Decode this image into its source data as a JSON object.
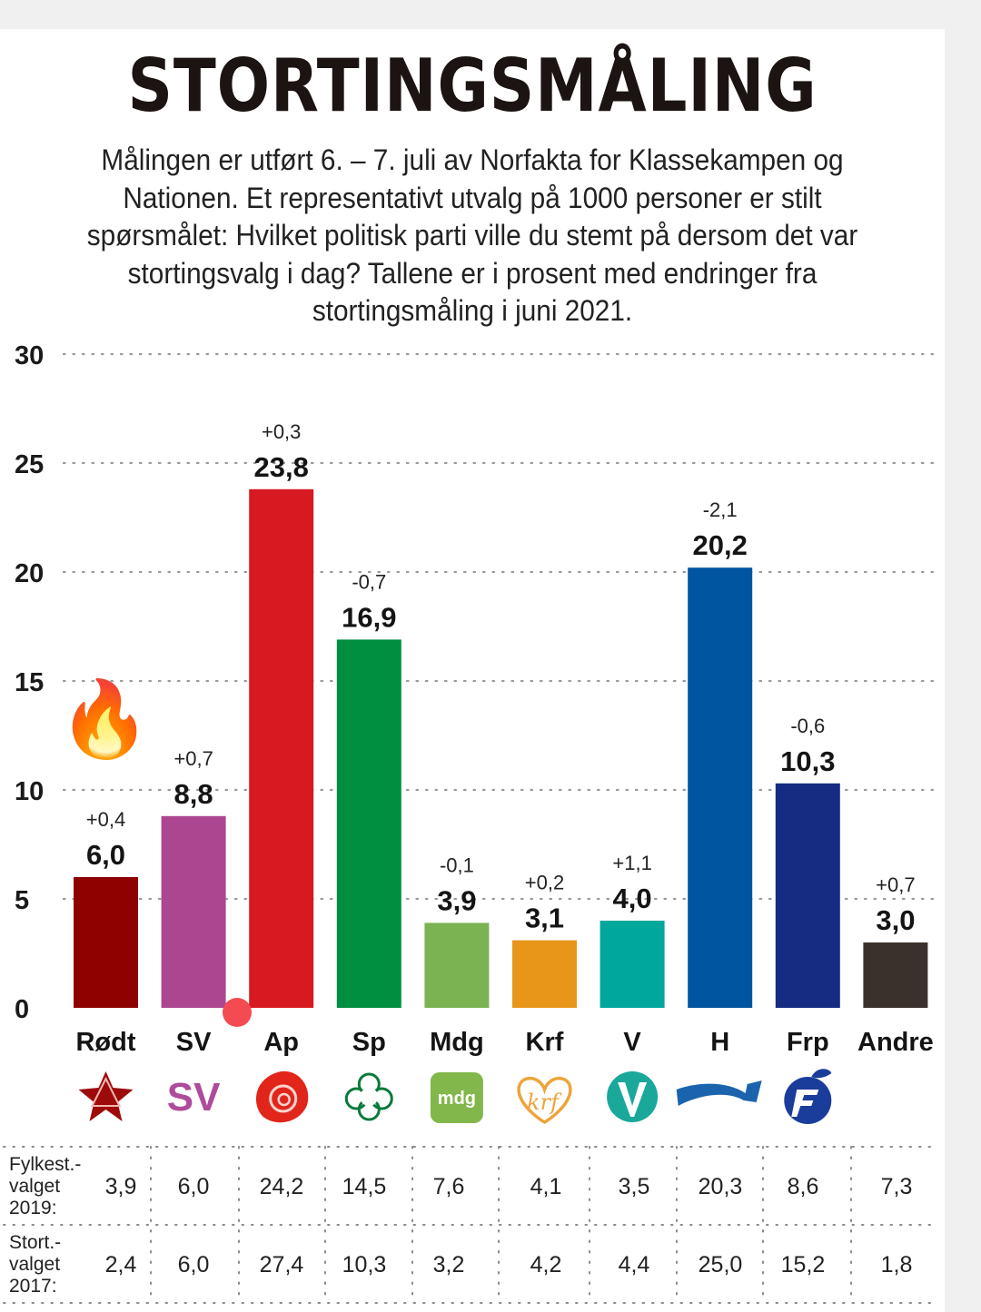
{
  "title": "STORTINGSMÅLING",
  "subtitle": "Målingen er utført 6. – 7. juli av Norfakta for Klassekampen og Nationen. Et representativt utvalg på 1000 personer er stilt spørsmålet: Hvilket politisk parti ville du stemt på dersom det var stortingsvalg i dag? Tallene er i prosent med endringer fra stortingsmåling i juni 2021.",
  "decorations": {
    "flame_emoji": "🔥",
    "flame_icon": "fire-icon",
    "red_dot": "#f44b52"
  },
  "chart_data": {
    "type": "bar",
    "title": "STORTINGSMÅLING",
    "xlabel": "",
    "ylabel": "",
    "ylim": [
      0,
      30
    ],
    "yticks": [
      0,
      5,
      10,
      15,
      20,
      25,
      30
    ],
    "grid": true,
    "categories": [
      "Rødt",
      "SV",
      "Ap",
      "Sp",
      "Mdg",
      "Krf",
      "V",
      "H",
      "Frp",
      "Andre"
    ],
    "values": [
      6.0,
      8.8,
      23.8,
      16.9,
      3.9,
      3.1,
      4.0,
      20.2,
      10.3,
      3.0
    ],
    "value_labels": [
      "6,0",
      "8,8",
      "23,8",
      "16,9",
      "3,9",
      "3,1",
      "4,0",
      "20,2",
      "10,3",
      "3,0"
    ],
    "changes": [
      "+0,4",
      "+0,7",
      "+0,3",
      "-0,7",
      "-0,1",
      "+0,2",
      "+1,1",
      "-2,1",
      "-0,6",
      "+0,7"
    ],
    "colors": [
      "#8f0000",
      "#ad4690",
      "#d71921",
      "#008e41",
      "#7bb352",
      "#e8961a",
      "#00a79b",
      "#0055a0",
      "#152c82",
      "#3b312c"
    ],
    "logos": [
      "rodt-star-icon",
      "sv-logo-icon",
      "ap-rose-icon",
      "sp-clover-icon",
      "mdg-logo-icon",
      "krf-heart-icon",
      "v-logo-icon",
      "h-arrow-icon",
      "frp-apple-icon",
      ""
    ],
    "table": {
      "rows": [
        {
          "label": [
            "Fylkest.-",
            "valget",
            "2019:"
          ],
          "values": [
            "3,9",
            "6,0",
            "24,2",
            "14,5",
            "7,6",
            "4,1",
            "3,5",
            "20,3",
            "8,6",
            "7,3"
          ]
        },
        {
          "label": [
            "Stort.-",
            "valget",
            "2017:"
          ],
          "values": [
            "2,4",
            "6,0",
            "27,4",
            "10,3",
            "3,2",
            "4,2",
            "4,4",
            "25,0",
            "15,2",
            "1,8"
          ]
        }
      ]
    }
  }
}
